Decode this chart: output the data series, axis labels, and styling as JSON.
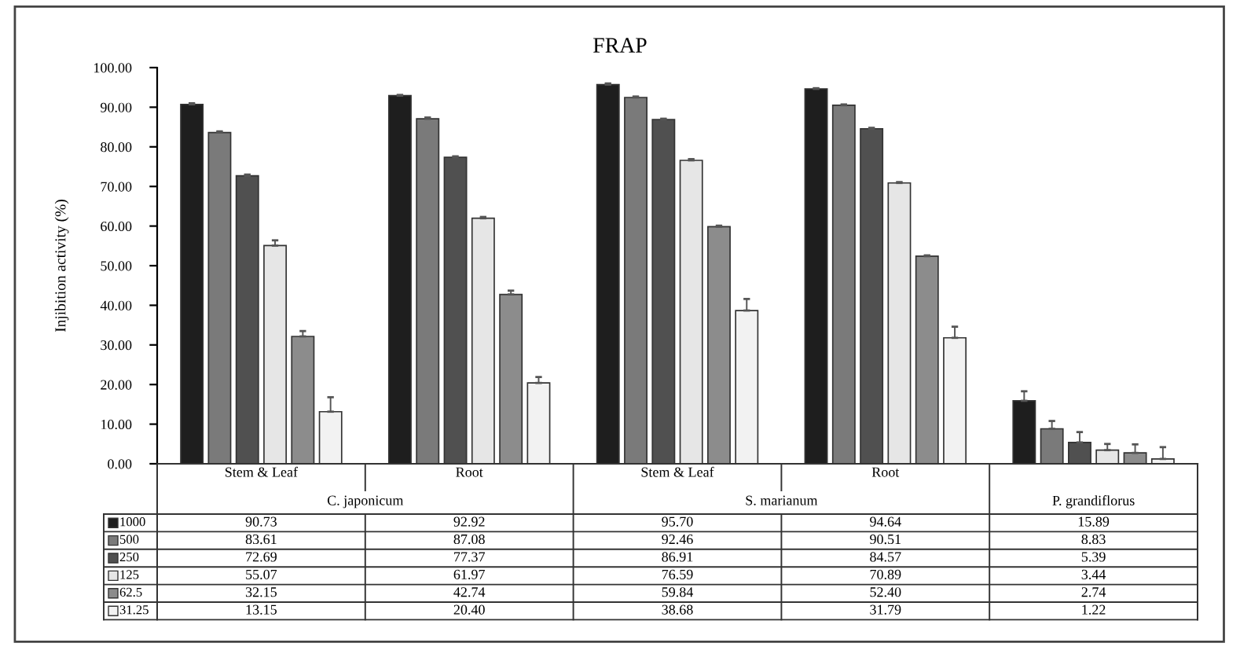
{
  "chart_data": {
    "type": "bar",
    "title": "FRAP",
    "ylabel": "Injibition activity (%)",
    "categories": [
      "Stem & Leaf",
      "Root",
      "Stem & Leaf",
      "Root",
      null
    ],
    "annotations": [
      "C. japonicum",
      "S. marianum",
      "P. grandiflorus"
    ],
    "series": [
      {
        "name": "1000",
        "color": "#1e1e1e",
        "values": [
          90.73,
          92.92,
          95.7,
          94.64,
          15.89
        ],
        "value_labels": [
          "90.73",
          "92.92",
          "95.70",
          "94.64",
          "15.89"
        ],
        "errors": [
          [
            90.73,
            91.0
          ],
          [
            92.92,
            93.1
          ],
          [
            95.7,
            96.0
          ],
          [
            94.64,
            94.8
          ],
          [
            15.89,
            18.3
          ]
        ]
      },
      {
        "name": "500",
        "color": "#7a7a7a",
        "values": [
          83.61,
          87.08,
          92.46,
          90.51,
          8.83
        ],
        "value_labels": [
          "83.61",
          "87.08",
          "92.46",
          "90.51",
          "8.83"
        ],
        "errors": [
          [
            83.61,
            83.9
          ],
          [
            87.08,
            87.4
          ],
          [
            92.46,
            92.7
          ],
          [
            90.51,
            90.7
          ],
          [
            8.83,
            10.8
          ]
        ]
      },
      {
        "name": "250",
        "color": "#505050",
        "values": [
          72.69,
          77.37,
          86.91,
          84.57,
          5.39
        ],
        "value_labels": [
          "72.69",
          "77.37",
          "86.91",
          "84.57",
          "5.39"
        ],
        "errors": [
          [
            72.69,
            73.0
          ],
          [
            77.37,
            77.6
          ],
          [
            86.91,
            87.1
          ],
          [
            84.57,
            84.8
          ],
          [
            5.39,
            8.0
          ]
        ]
      },
      {
        "name": "125",
        "color": "#e6e6e6",
        "values": [
          55.07,
          61.97,
          76.59,
          70.89,
          3.44
        ],
        "value_labels": [
          "55.07",
          "61.97",
          "76.59",
          "70.89",
          "3.44"
        ],
        "errors": [
          [
            55.07,
            56.4
          ],
          [
            61.97,
            62.3
          ],
          [
            76.59,
            76.9
          ],
          [
            70.89,
            71.1
          ],
          [
            3.44,
            5.0
          ]
        ]
      },
      {
        "name": "62.5",
        "color": "#8c8c8c",
        "values": [
          32.15,
          42.74,
          59.84,
          52.4,
          2.74
        ],
        "value_labels": [
          "32.15",
          "42.74",
          "59.84",
          "52.40",
          "2.74"
        ],
        "errors": [
          [
            32.15,
            33.5
          ],
          [
            42.74,
            43.7
          ],
          [
            59.84,
            60.1
          ],
          [
            52.4,
            52.6
          ],
          [
            2.74,
            4.9
          ]
        ]
      },
      {
        "name": "31.25",
        "color": "#f2f2f2",
        "values": [
          13.15,
          20.4,
          38.68,
          31.79,
          1.22
        ],
        "value_labels": [
          "13.15",
          "20.40",
          "38.68",
          "31.79",
          "1.22"
        ],
        "errors": [
          [
            13.15,
            16.8
          ],
          [
            20.4,
            21.9
          ],
          [
            38.68,
            41.6
          ],
          [
            31.79,
            34.6
          ],
          [
            1.22,
            4.2
          ]
        ]
      }
    ],
    "ylim": [
      0,
      100
    ],
    "yticks": [
      {
        "value": 0,
        "label": "0.00"
      },
      {
        "value": 10,
        "label": "10.00"
      },
      {
        "value": 20,
        "label": "20.00"
      },
      {
        "value": 30,
        "label": "30.00"
      },
      {
        "value": 40,
        "label": "40.00"
      },
      {
        "value": 50,
        "label": "50.00"
      },
      {
        "value": 60,
        "label": "60.00"
      },
      {
        "value": 70,
        "label": "70.00"
      },
      {
        "value": 80,
        "label": "80.00"
      },
      {
        "value": 90,
        "label": "90.00"
      },
      {
        "value": 100,
        "label": "100.00"
      }
    ],
    "legend": "bottom",
    "grid": false
  }
}
